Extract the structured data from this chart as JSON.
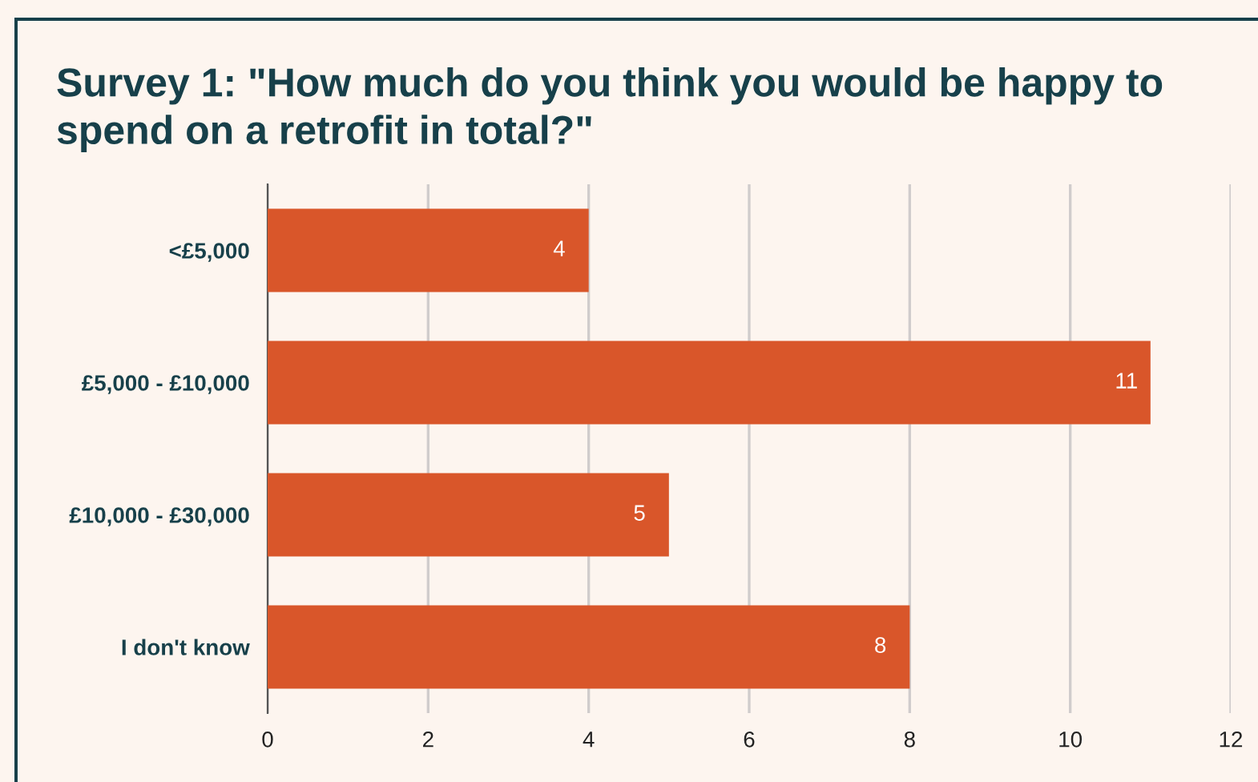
{
  "chart_data": {
    "type": "bar",
    "orientation": "horizontal",
    "title": "Survey 1: \"How much do you think you would be happy to spend on a retrofit in total?\"",
    "categories": [
      "<£5,000",
      "£5,000 - £10,000",
      "£10,000 - £30,000",
      "I don't know"
    ],
    "values": [
      4,
      11,
      5,
      8
    ],
    "color": "#d9562a",
    "xlim": [
      0,
      12
    ],
    "xticks": [
      0,
      2,
      4,
      6,
      8,
      10,
      12
    ],
    "grid": "x",
    "data_labels": true
  }
}
